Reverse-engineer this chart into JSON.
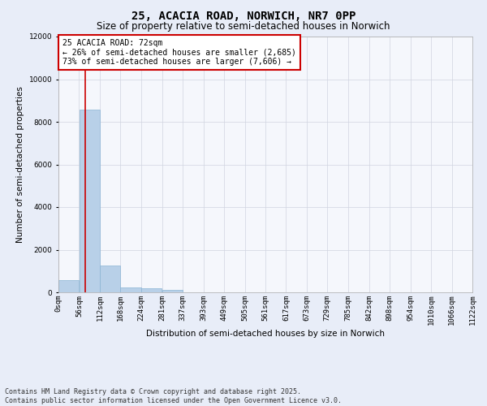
{
  "title": "25, ACACIA ROAD, NORWICH, NR7 0PP",
  "subtitle": "Size of property relative to semi-detached houses in Norwich",
  "xlabel": "Distribution of semi-detached houses by size in Norwich",
  "ylabel": "Number of semi-detached properties",
  "footer": "Contains HM Land Registry data © Crown copyright and database right 2025.\nContains public sector information licensed under the Open Government Licence v3.0.",
  "annotation_title": "25 ACACIA ROAD: 72sqm",
  "annotation_line1": "← 26% of semi-detached houses are smaller (2,685)",
  "annotation_line2": "73% of semi-detached houses are larger (7,606) →",
  "property_size": 72,
  "bar_color": "#b8d0e8",
  "bar_edge_color": "#8ab4d4",
  "vline_color": "#cc0000",
  "background_color": "#e8edf8",
  "plot_bg_color": "#f5f7fc",
  "grid_color": "#d0d4e0",
  "bin_edges": [
    0,
    56,
    112,
    168,
    224,
    281,
    337,
    393,
    449,
    505,
    561,
    617,
    673,
    729,
    785,
    842,
    898,
    954,
    1010,
    1066,
    1122
  ],
  "bin_labels": [
    "0sqm",
    "56sqm",
    "112sqm",
    "168sqm",
    "224sqm",
    "281sqm",
    "337sqm",
    "393sqm",
    "449sqm",
    "505sqm",
    "561sqm",
    "617sqm",
    "673sqm",
    "729sqm",
    "785sqm",
    "842sqm",
    "898sqm",
    "954sqm",
    "1010sqm",
    "1066sqm",
    "1122sqm"
  ],
  "bar_heights": [
    560,
    8580,
    1240,
    220,
    180,
    100,
    0,
    0,
    0,
    0,
    0,
    0,
    0,
    0,
    0,
    0,
    0,
    0,
    0,
    0
  ],
  "ylim": [
    0,
    12000
  ],
  "yticks": [
    0,
    2000,
    4000,
    6000,
    8000,
    10000,
    12000
  ],
  "annotation_box_color": "#ffffff",
  "annotation_box_edge": "#cc0000",
  "title_fontsize": 10,
  "subtitle_fontsize": 8.5,
  "axis_label_fontsize": 7.5,
  "tick_fontsize": 6.5,
  "annotation_fontsize": 7,
  "footer_fontsize": 6
}
